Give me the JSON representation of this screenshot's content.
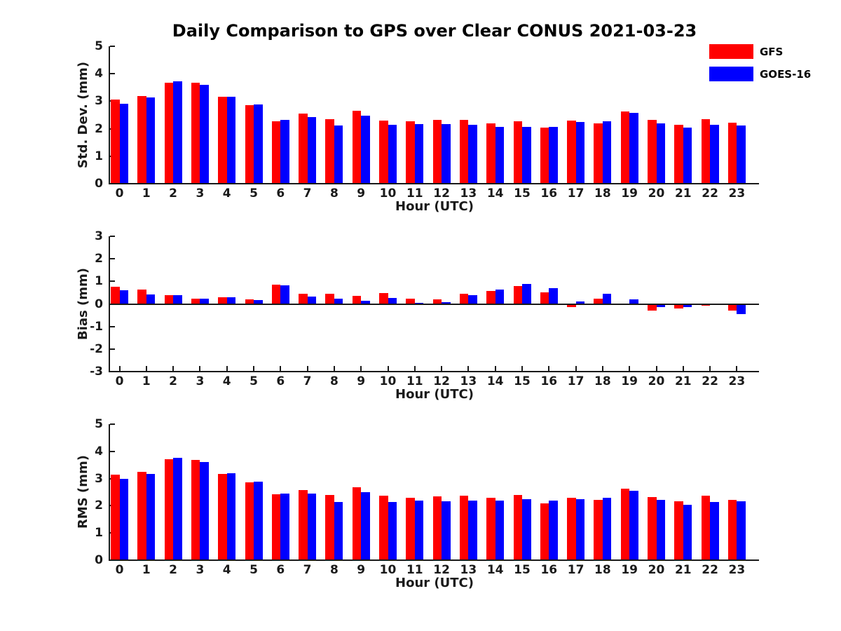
{
  "title": "Daily Comparison to GPS over Clear CONUS 2021-03-23",
  "xlabel": "Hour (UTC)",
  "colors": {
    "gfs": "#ff0000",
    "goes16": "#0000ff",
    "axis": "#1a1a1a",
    "background": "#ffffff"
  },
  "legend": {
    "entries": [
      {
        "label": "GFS",
        "color": "#ff0000"
      },
      {
        "label": "GOES-16",
        "color": "#0000ff"
      }
    ]
  },
  "chart_data": [
    {
      "type": "bar",
      "title": "",
      "ylabel": "Std. Dev. (mm)",
      "xlabel": "Hour (UTC)",
      "ylim": [
        0,
        5
      ],
      "yticks": [
        0,
        1,
        2,
        3,
        4,
        5
      ],
      "grid": false,
      "legend_position": "upper-right-outside",
      "categories": [
        "0",
        "1",
        "2",
        "3",
        "4",
        "5",
        "6",
        "7",
        "8",
        "9",
        "10",
        "11",
        "12",
        "13",
        "14",
        "15",
        "16",
        "17",
        "18",
        "19",
        "20",
        "21",
        "22",
        "23"
      ],
      "series": [
        {
          "name": "GFS",
          "color": "#ff0000",
          "values": [
            3.05,
            3.18,
            3.67,
            3.68,
            3.17,
            2.85,
            2.28,
            2.54,
            2.35,
            2.66,
            2.3,
            2.27,
            2.32,
            2.32,
            2.2,
            2.26,
            2.04,
            2.29,
            2.2,
            2.64,
            2.31,
            2.15,
            2.34,
            2.21
          ]
        },
        {
          "name": "GOES-16",
          "color": "#0000ff",
          "values": [
            2.9,
            3.13,
            3.73,
            3.6,
            3.16,
            2.88,
            2.31,
            2.42,
            2.12,
            2.48,
            2.14,
            2.17,
            2.16,
            2.14,
            2.08,
            2.08,
            2.07,
            2.24,
            2.27,
            2.58,
            2.2,
            2.03,
            2.15,
            2.12
          ]
        }
      ]
    },
    {
      "type": "bar",
      "title": "",
      "ylabel": "Bias (mm)",
      "xlabel": "Hour (UTC)",
      "ylim": [
        -3,
        3
      ],
      "yticks": [
        -3,
        -2,
        -1,
        0,
        1,
        2,
        3
      ],
      "grid": false,
      "zero_line": true,
      "categories": [
        "0",
        "1",
        "2",
        "3",
        "4",
        "5",
        "6",
        "7",
        "8",
        "9",
        "10",
        "11",
        "12",
        "13",
        "14",
        "15",
        "16",
        "17",
        "18",
        "19",
        "20",
        "21",
        "22",
        "23"
      ],
      "series": [
        {
          "name": "GFS",
          "color": "#ff0000",
          "values": [
            0.76,
            0.63,
            0.38,
            0.25,
            0.29,
            0.21,
            0.86,
            0.46,
            0.45,
            0.36,
            0.48,
            0.25,
            0.21,
            0.46,
            0.59,
            0.8,
            0.52,
            -0.15,
            0.24,
            0.02,
            -0.3,
            -0.2,
            -0.08,
            -0.3
          ]
        },
        {
          "name": "GOES-16",
          "color": "#0000ff",
          "values": [
            0.62,
            0.41,
            0.38,
            0.22,
            0.29,
            0.18,
            0.82,
            0.32,
            0.23,
            0.15,
            0.27,
            0.05,
            0.09,
            0.38,
            0.63,
            0.9,
            0.7,
            0.1,
            0.45,
            0.2,
            -0.15,
            -0.15,
            -0.05,
            -0.45
          ]
        }
      ]
    },
    {
      "type": "bar",
      "title": "",
      "ylabel": "RMS (mm)",
      "xlabel": "Hour (UTC)",
      "ylim": [
        0,
        5
      ],
      "yticks": [
        0,
        1,
        2,
        3,
        4,
        5
      ],
      "grid": false,
      "categories": [
        "0",
        "1",
        "2",
        "3",
        "4",
        "5",
        "6",
        "7",
        "8",
        "9",
        "10",
        "11",
        "12",
        "13",
        "14",
        "15",
        "16",
        "17",
        "18",
        "19",
        "20",
        "21",
        "22",
        "23"
      ],
      "series": [
        {
          "name": "GFS",
          "color": "#ff0000",
          "values": [
            3.15,
            3.24,
            3.7,
            3.68,
            3.18,
            2.86,
            2.42,
            2.57,
            2.39,
            2.68,
            2.37,
            2.29,
            2.34,
            2.37,
            2.3,
            2.39,
            2.1,
            2.3,
            2.22,
            2.63,
            2.32,
            2.16,
            2.36,
            2.21
          ]
        },
        {
          "name": "GOES-16",
          "color": "#0000ff",
          "values": [
            3.0,
            3.16,
            3.77,
            3.61,
            3.21,
            2.89,
            2.44,
            2.44,
            2.13,
            2.49,
            2.15,
            2.19,
            2.16,
            2.19,
            2.19,
            2.25,
            2.18,
            2.25,
            2.29,
            2.56,
            2.21,
            2.04,
            2.14,
            2.17
          ]
        }
      ]
    }
  ]
}
